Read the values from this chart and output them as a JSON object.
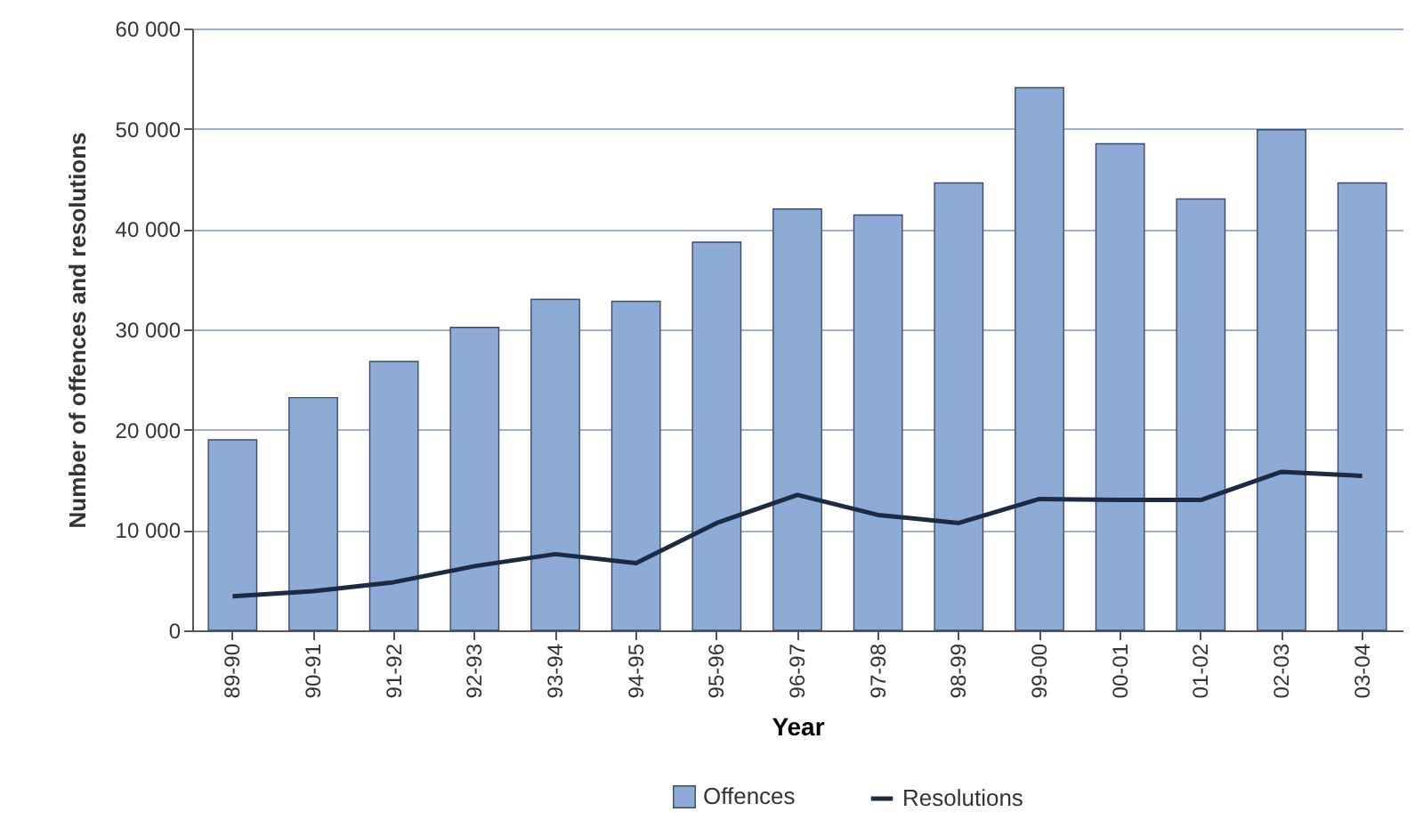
{
  "chart_data": {
    "type": "bar",
    "xlabel": "Year",
    "ylabel": "Number of offences and resolutions",
    "categories": [
      "89-90",
      "90-91",
      "91-92",
      "92-93",
      "93-94",
      "94-95",
      "95-96",
      "96-97",
      "97-98",
      "98-99",
      "99-00",
      "00-01",
      "01-02",
      "02-03",
      "03-04"
    ],
    "series": [
      {
        "name": "Offences",
        "color": "#8eaad6",
        "values": [
          19000,
          23200,
          26800,
          30200,
          33000,
          32800,
          38700,
          42000,
          41400,
          44600,
          54100,
          48500,
          43000,
          49900,
          44600
        ]
      },
      {
        "name": "Resolutions",
        "type": "line",
        "color": "#1e2a44",
        "values": [
          3400,
          3900,
          4800,
          6400,
          7600,
          6700,
          10700,
          13500,
          11500,
          10700,
          13100,
          13000,
          13000,
          15800,
          15400
        ]
      }
    ],
    "ylim": [
      0,
      60000
    ],
    "yticks": [
      0,
      {
        "value": 10000,
        "label": "10 000"
      },
      {
        "value": 20000,
        "label": "20 000"
      },
      {
        "value": 30000,
        "label": "30 000"
      },
      {
        "value": 40000,
        "label": "40 000"
      },
      {
        "value": 50000,
        "label": "50 000"
      },
      {
        "value": 60000,
        "label": "60 000"
      }
    ],
    "grid": "y",
    "legend": "bottom",
    "marker": "none",
    "line_style": "solid"
  }
}
